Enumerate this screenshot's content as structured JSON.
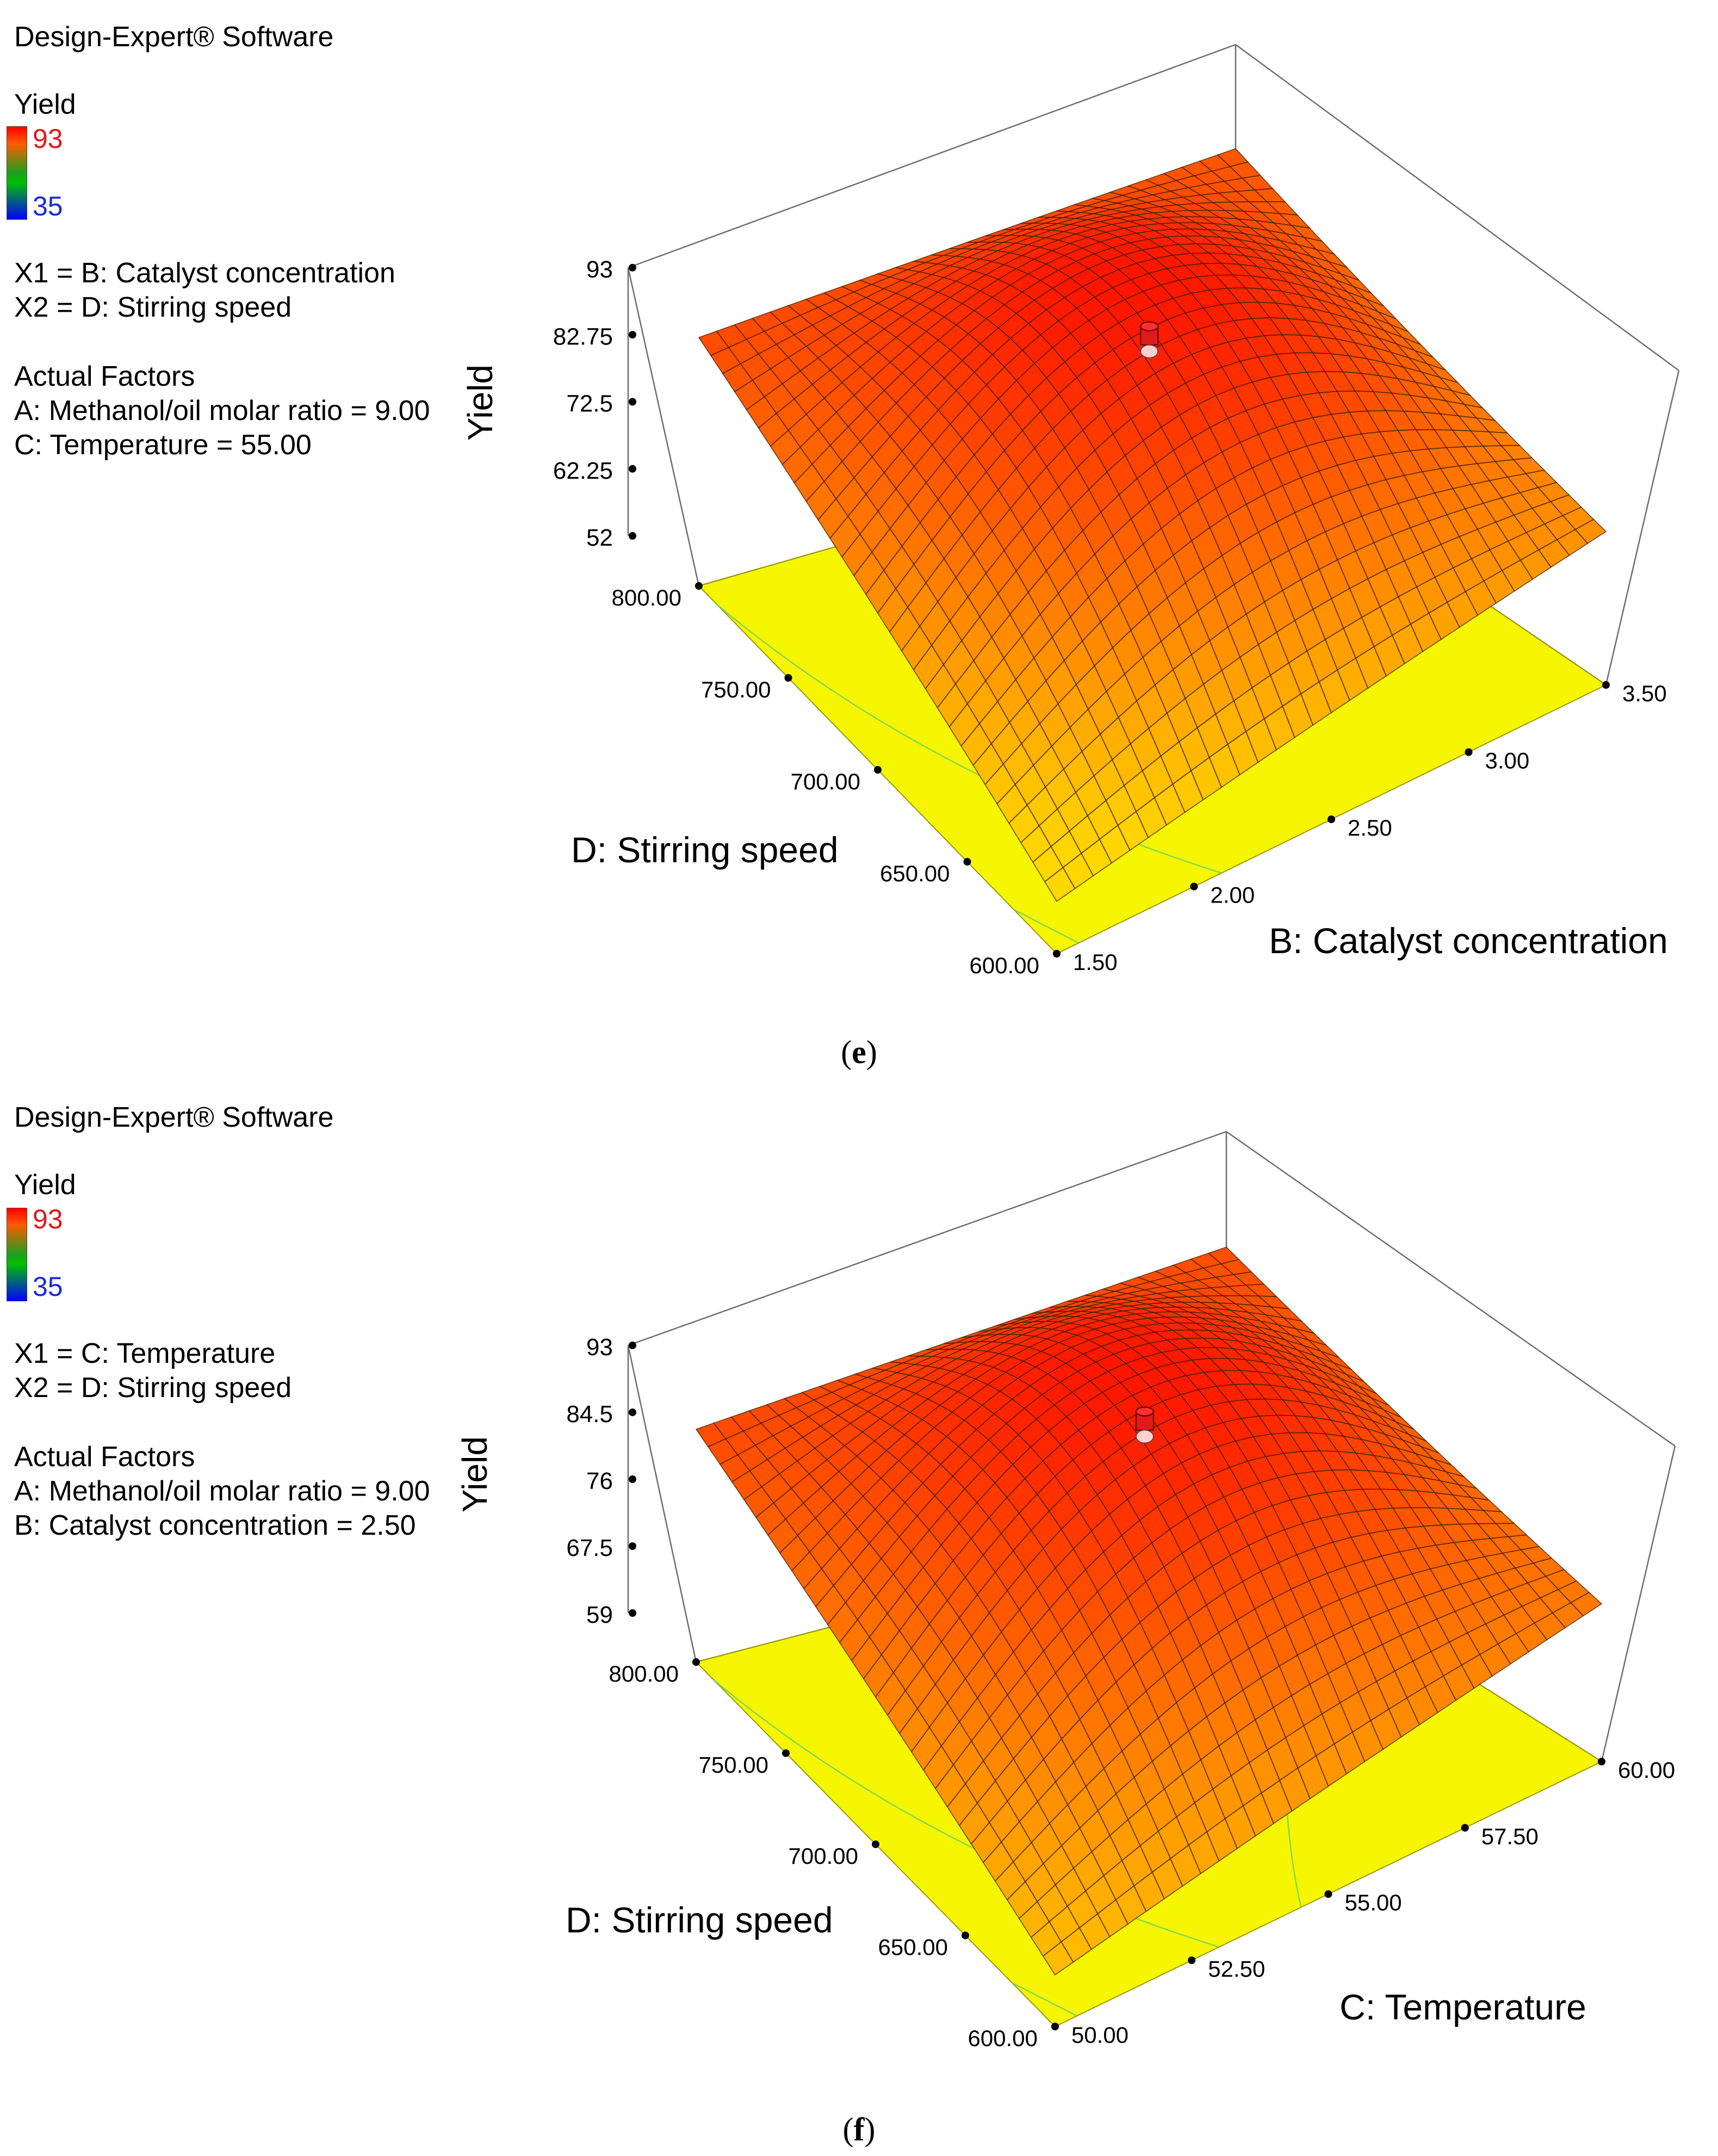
{
  "panels": [
    {
      "id": "e",
      "caption_letter": "e",
      "software": "Design-Expert® Software",
      "response": "Yield",
      "legend_hi": "93",
      "legend_lo": "35",
      "x1_line": "X1 = B: Catalyst concentration",
      "x2_line": "X2 = D: Stirring speed",
      "actual_factors_title": "Actual Factors",
      "factor_a": "A: Methanol/oil molar ratio = 9.00",
      "factor_c": "C: Temperature = 55.00"
    },
    {
      "id": "f",
      "caption_letter": "f",
      "software": "Design-Expert® Software",
      "response": "Yield",
      "legend_hi": "93",
      "legend_lo": "35",
      "x1_line": "X1 = C: Temperature",
      "x2_line": "X2 = D: Stirring speed",
      "actual_factors_title": "Actual Factors",
      "factor_a": "A: Methanol/oil molar ratio = 9.00",
      "factor_c": "B: Catalyst concentration = 2.50"
    }
  ],
  "chart_data": [
    {
      "type": "surface3d",
      "title": "",
      "zlabel": "Yield",
      "xlabel": "B: Catalyst concentration",
      "ylabel": "D: Stirring speed",
      "x_ticks": [
        "1.50",
        "2.00",
        "2.50",
        "3.00",
        "3.50"
      ],
      "y_ticks": [
        "600.00",
        "650.00",
        "700.00",
        "750.00",
        "800.00"
      ],
      "z_ticks": [
        "52",
        "62.25",
        "72.5",
        "82.75",
        "93"
      ],
      "x_range": [
        1.5,
        3.5
      ],
      "y_range": [
        600,
        800
      ],
      "z_range": [
        52,
        93
      ],
      "corner_values": {
        "x_low_y_high": 84,
        "x_high_y_high": 82,
        "x_low_y_low": 58,
        "x_high_y_low": 72,
        "peak": 92
      },
      "design_point": {
        "x": 2.5,
        "y": 700,
        "z": 90
      }
    },
    {
      "type": "surface3d",
      "title": "",
      "zlabel": "Yield",
      "xlabel": "C: Temperature",
      "ylabel": "D: Stirring speed",
      "x_ticks": [
        "50.00",
        "52.50",
        "55.00",
        "57.50",
        "60.00"
      ],
      "y_ticks": [
        "600.00",
        "650.00",
        "700.00",
        "750.00",
        "800.00"
      ],
      "z_ticks": [
        "59",
        "67.5",
        "76",
        "84.5",
        "93"
      ],
      "x_range": [
        50,
        60
      ],
      "y_range": [
        600,
        800
      ],
      "z_range": [
        59,
        93
      ],
      "corner_values": {
        "x_low_y_high": 84,
        "x_high_y_high": 83,
        "x_low_y_low": 64,
        "x_high_y_low": 76,
        "peak": 92
      },
      "design_point": {
        "x": 55,
        "y": 700,
        "z": 90
      }
    }
  ]
}
